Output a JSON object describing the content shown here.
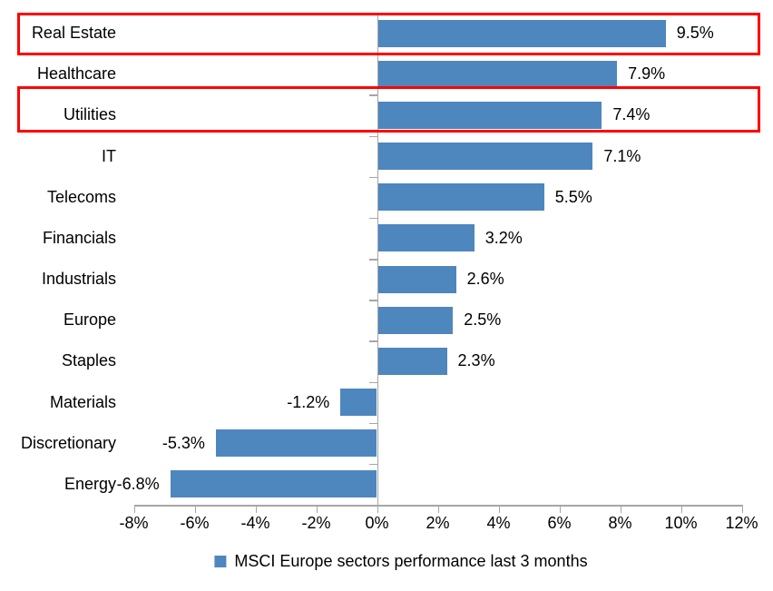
{
  "chart_data": {
    "type": "bar",
    "orientation": "horizontal",
    "categories": [
      "Real Estate",
      "Healthcare",
      "Utilities",
      "IT",
      "Telecoms",
      "Financials",
      "Industrials",
      "Europe",
      "Staples",
      "Materials",
      "Discretionary",
      "Energy"
    ],
    "values": [
      9.5,
      7.9,
      7.4,
      7.1,
      5.5,
      3.2,
      2.6,
      2.5,
      2.3,
      -1.2,
      -5.3,
      -6.8
    ],
    "data_labels": [
      "9.5%",
      "7.9%",
      "7.4%",
      "7.1%",
      "5.5%",
      "3.2%",
      "2.6%",
      "2.5%",
      "2.3%",
      "-1.2%",
      "-5.3%",
      "-6.8%"
    ],
    "x_axis": {
      "tick_labels": [
        "-8%",
        "-6%",
        "-4%",
        "-2%",
        "0%",
        "2%",
        "4%",
        "6%",
        "8%",
        "10%",
        "12%"
      ],
      "min": -8,
      "max": 12,
      "step": 2
    },
    "legend": {
      "label": "MSCI Europe sectors performance last 3 months",
      "position": "bottom",
      "marker": "square-icon"
    },
    "colors": {
      "bar": "#4e86be",
      "highlight_border": "#fe0000",
      "axis": "#a6a6a6",
      "text": "#000000"
    },
    "highlighted_categories": [
      "Real Estate",
      "Utilities"
    ],
    "grid": "off",
    "title": ""
  }
}
